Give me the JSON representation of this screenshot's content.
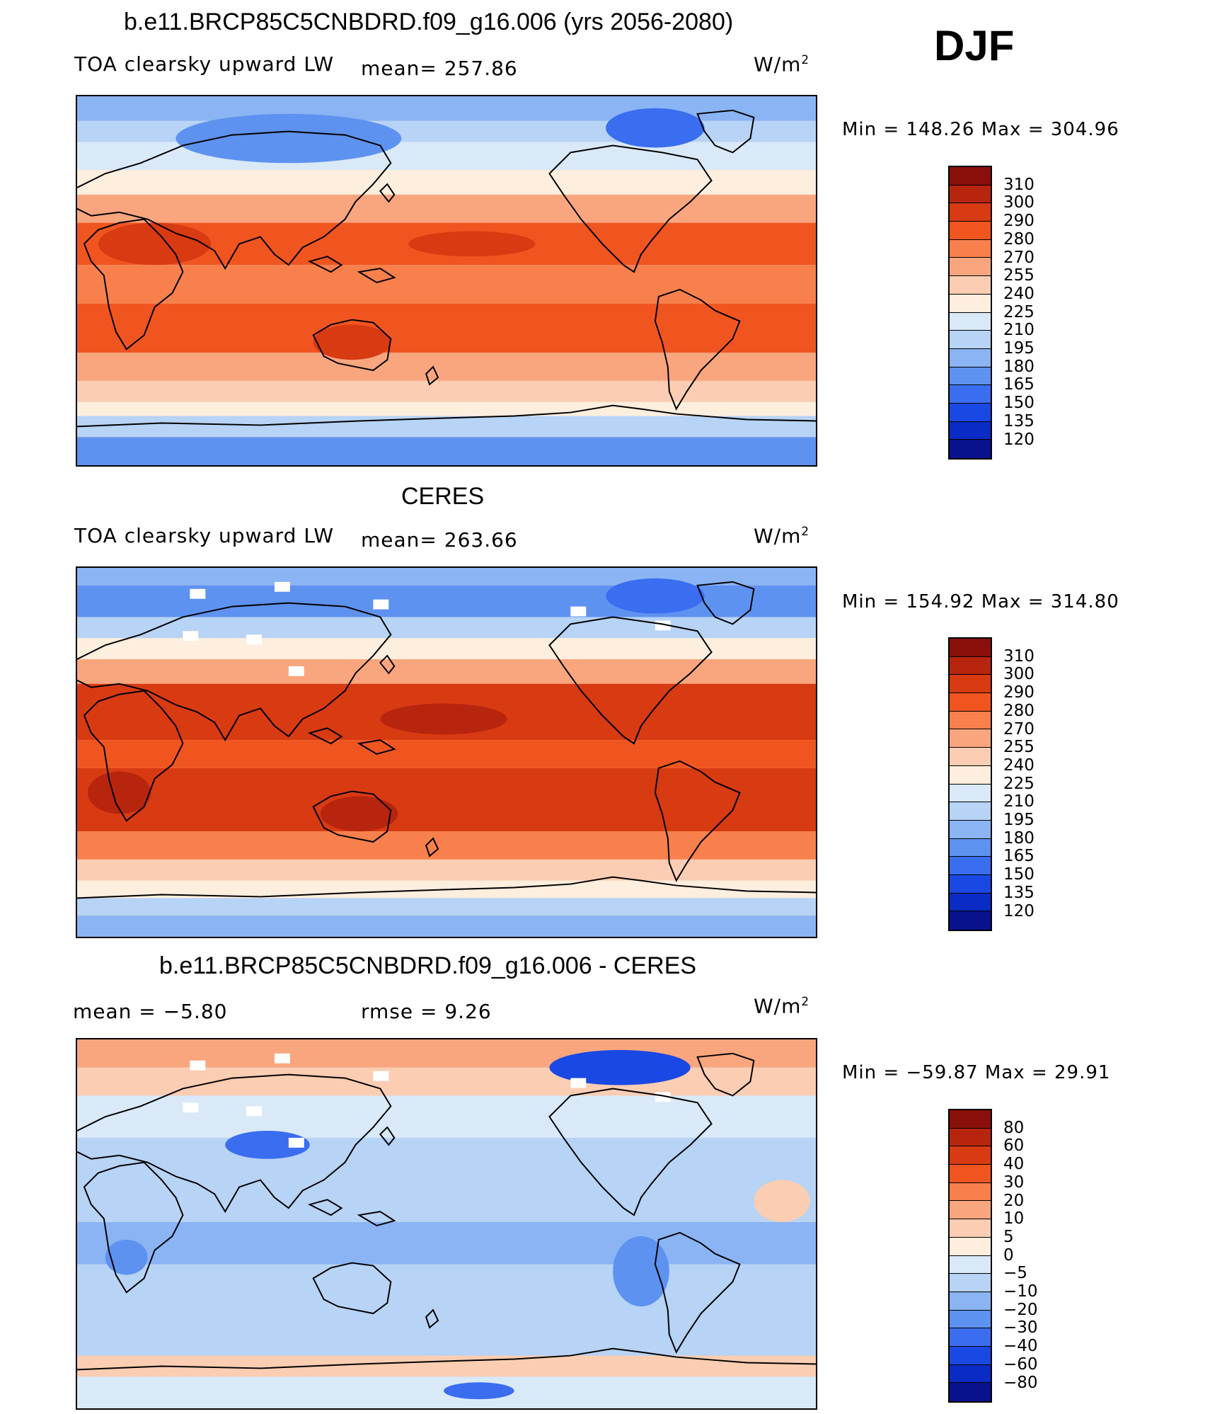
{
  "season": "DJF",
  "panels": [
    {
      "title": "b.e11.BRCP85C5CNBDRD.f09_g16.006 (yrs 2056-2080)",
      "left_label": "TOA clearsky upward LW",
      "stat1": "mean= 257.86",
      "stat2": "",
      "units": "W/m",
      "units_sup": "2",
      "minmax": "Min  =  148.26  Max  =  304.96",
      "levels": [
        "310",
        "300",
        "290",
        "280",
        "270",
        "255",
        "240",
        "225",
        "210",
        "195",
        "180",
        "165",
        "150",
        "135",
        "120"
      ],
      "colors": [
        "#8b0f0a",
        "#b8250e",
        "#d83a12",
        "#f05520",
        "#f8804c",
        "#f9a67e",
        "#fbcdb2",
        "#fdeede",
        "#d9e9f8",
        "#b7d3f5",
        "#8ab4f3",
        "#5e92f0",
        "#3a6df0",
        "#1a48e4",
        "#0a2cc4",
        "#07128c"
      ],
      "field": "model"
    },
    {
      "title": "CERES",
      "left_label": "TOA clearsky upward LW",
      "stat1": "mean= 263.66",
      "stat2": "",
      "units": "W/m",
      "units_sup": "2",
      "minmax": "Min  =  154.92  Max  =  314.80",
      "levels": [
        "310",
        "300",
        "290",
        "280",
        "270",
        "255",
        "240",
        "225",
        "210",
        "195",
        "180",
        "165",
        "150",
        "135",
        "120"
      ],
      "colors": [
        "#8b0f0a",
        "#b8250e",
        "#d83a12",
        "#f05520",
        "#f8804c",
        "#f9a67e",
        "#fbcdb2",
        "#fdeede",
        "#d9e9f8",
        "#b7d3f5",
        "#8ab4f3",
        "#5e92f0",
        "#3a6df0",
        "#1a48e4",
        "#0a2cc4",
        "#07128c"
      ],
      "field": "obs"
    },
    {
      "title": "b.e11.BRCP85C5CNBDRD.f09_g16.006 - CERES",
      "left_label": "mean =    −5.80",
      "stat1": "rmse =     9.26",
      "stat2": "",
      "units": "W/m",
      "units_sup": "2",
      "minmax": "Min  =  −59.87  Max  =    29.91",
      "levels": [
        "80",
        "60",
        "40",
        "30",
        "20",
        "10",
        "5",
        "0",
        "−5",
        "−10",
        "−20",
        "−30",
        "−40",
        "−60",
        "−80"
      ],
      "colors": [
        "#8b0f0a",
        "#b8250e",
        "#d83a12",
        "#f05520",
        "#f8804c",
        "#f9a67e",
        "#fbcdb2",
        "#fdeede",
        "#d9e9f8",
        "#b7d3f5",
        "#8ab4f3",
        "#5e92f0",
        "#3a6df0",
        "#1a48e4",
        "#0a2cc4",
        "#07128c"
      ],
      "field": "diff"
    }
  ]
}
